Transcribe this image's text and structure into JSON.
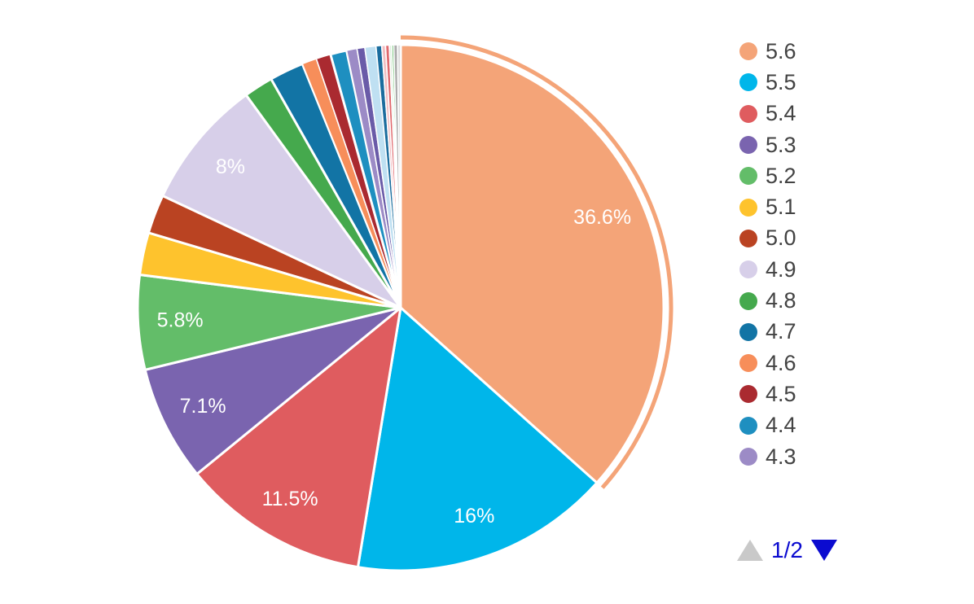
{
  "chart_data": {
    "type": "pie",
    "unit": "%",
    "direction": "clockwise",
    "start_angle_deg": 0,
    "legend_position": "right",
    "label_color": "#FFFFFF",
    "slices": [
      {
        "name": "5.6",
        "value": 36.6,
        "color": "#F4A478",
        "label": "36.6%",
        "selected_ring": true
      },
      {
        "name": "5.5",
        "value": 16,
        "color": "#00B6EA",
        "label": "16%",
        "selected_ring": false
      },
      {
        "name": "5.4",
        "value": 11.5,
        "color": "#DF5C5F",
        "label": "11.5%",
        "selected_ring": false
      },
      {
        "name": "5.3",
        "value": 7.1,
        "color": "#7A64AF",
        "label": "7.1%",
        "selected_ring": false
      },
      {
        "name": "5.2",
        "value": 5.8,
        "color": "#63BD69",
        "label": "5.8%",
        "selected_ring": false
      },
      {
        "name": "5.1",
        "value": 2.6,
        "color": "#FEC32D",
        "label": null,
        "selected_ring": false
      },
      {
        "name": "5.0",
        "value": 2.4,
        "color": "#BA4322",
        "label": null,
        "selected_ring": false
      },
      {
        "name": "4.9",
        "value": 8,
        "color": "#D7CFE9",
        "label": "8%",
        "selected_ring": false
      },
      {
        "name": "4.8",
        "value": 1.8,
        "color": "#45A94D",
        "label": null,
        "selected_ring": false
      },
      {
        "name": "4.7",
        "value": 2.1,
        "color": "#1274A5",
        "label": null,
        "selected_ring": false
      },
      {
        "name": "4.6",
        "value": 0.9,
        "color": "#F78E5A",
        "label": null,
        "selected_ring": false
      },
      {
        "name": "4.5",
        "value": 0.9,
        "color": "#AA2A30",
        "label": null,
        "selected_ring": false
      },
      {
        "name": "4.4",
        "value": 1.0,
        "color": "#1E8FC0",
        "label": null,
        "selected_ring": false
      },
      {
        "name": "4.3",
        "value": 0.64,
        "color": "#9C8BC6",
        "label": null,
        "selected_ring": false
      },
      {
        "name": null,
        "value": 0.48,
        "color": "#6A5BA8",
        "label": null,
        "selected_ring": false
      },
      {
        "name": null,
        "value": 0.68,
        "color": "#BFE0F2",
        "label": null,
        "selected_ring": false
      },
      {
        "name": null,
        "value": 0.35,
        "color": "#1B6D9E",
        "label": null,
        "selected_ring": false
      },
      {
        "name": null,
        "value": 0.23,
        "color": "#F2BEC2",
        "label": null,
        "selected_ring": false
      },
      {
        "name": null,
        "value": 0.23,
        "color": "#E0696E",
        "label": null,
        "selected_ring": false
      },
      {
        "name": null,
        "value": 0.15,
        "color": "#DCEEDC",
        "label": null,
        "selected_ring": false
      },
      {
        "name": null,
        "value": 0.12,
        "color": "#4CAF50",
        "label": null,
        "selected_ring": false
      },
      {
        "name": null,
        "value": 0.23,
        "color": "#ABABAB",
        "label": null,
        "selected_ring": false
      },
      {
        "name": null,
        "value": 0.19,
        "color": "#DCDCDC",
        "label": null,
        "selected_ring": false
      }
    ]
  },
  "legend": {
    "text_color": "#434343",
    "pagination": {
      "current_page": "1/2",
      "prev_enabled": false,
      "next_enabled": true,
      "prev_color": "#C9C9C9",
      "next_color": "#0B0BD0",
      "text_color": "#0B0BD0"
    }
  }
}
